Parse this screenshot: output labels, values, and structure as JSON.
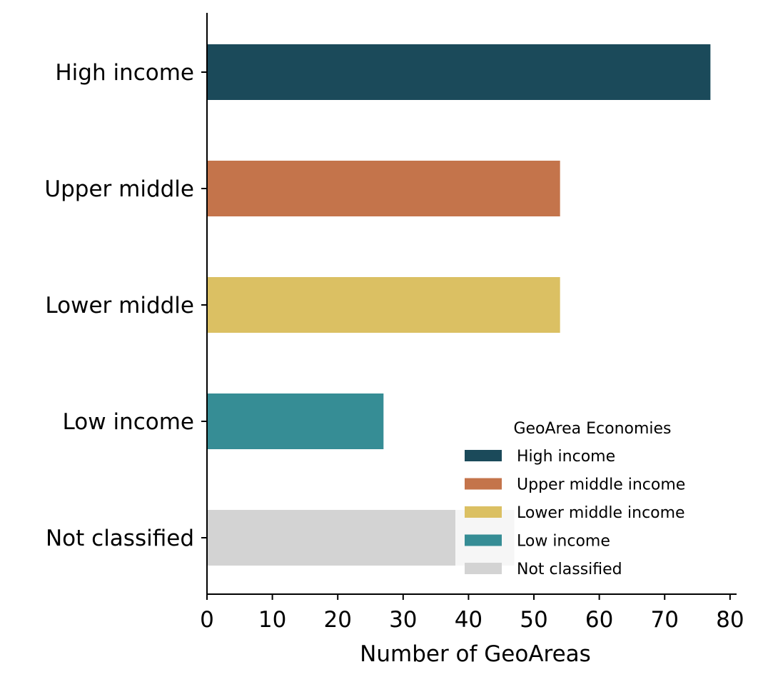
{
  "chart_data": {
    "type": "bar",
    "orientation": "horizontal",
    "categories": [
      "High income",
      "Upper middle",
      "Lower middle",
      "Low income",
      "Not classified"
    ],
    "values": [
      77,
      54,
      54,
      27,
      47
    ],
    "colors": [
      "#1b4a5a",
      "#c4744b",
      "#dbc063",
      "#368d95",
      "#d3d3d3"
    ],
    "xlabel": "Number of GeoAreas",
    "ylabel": "",
    "xlim": [
      0,
      81
    ],
    "xticks": [
      0,
      10,
      20,
      30,
      40,
      50,
      60,
      70,
      80
    ],
    "grid": false,
    "legend": {
      "title": "GeoArea Economies",
      "placement": "lower-right",
      "entries": [
        {
          "label": "High income",
          "color": "#1b4a5a"
        },
        {
          "label": "Upper middle income",
          "color": "#c4744b"
        },
        {
          "label": "Lower middle income",
          "color": "#dbc063"
        },
        {
          "label": "Low income",
          "color": "#368d95"
        },
        {
          "label": "Not classified",
          "color": "#d3d3d3"
        }
      ]
    }
  }
}
